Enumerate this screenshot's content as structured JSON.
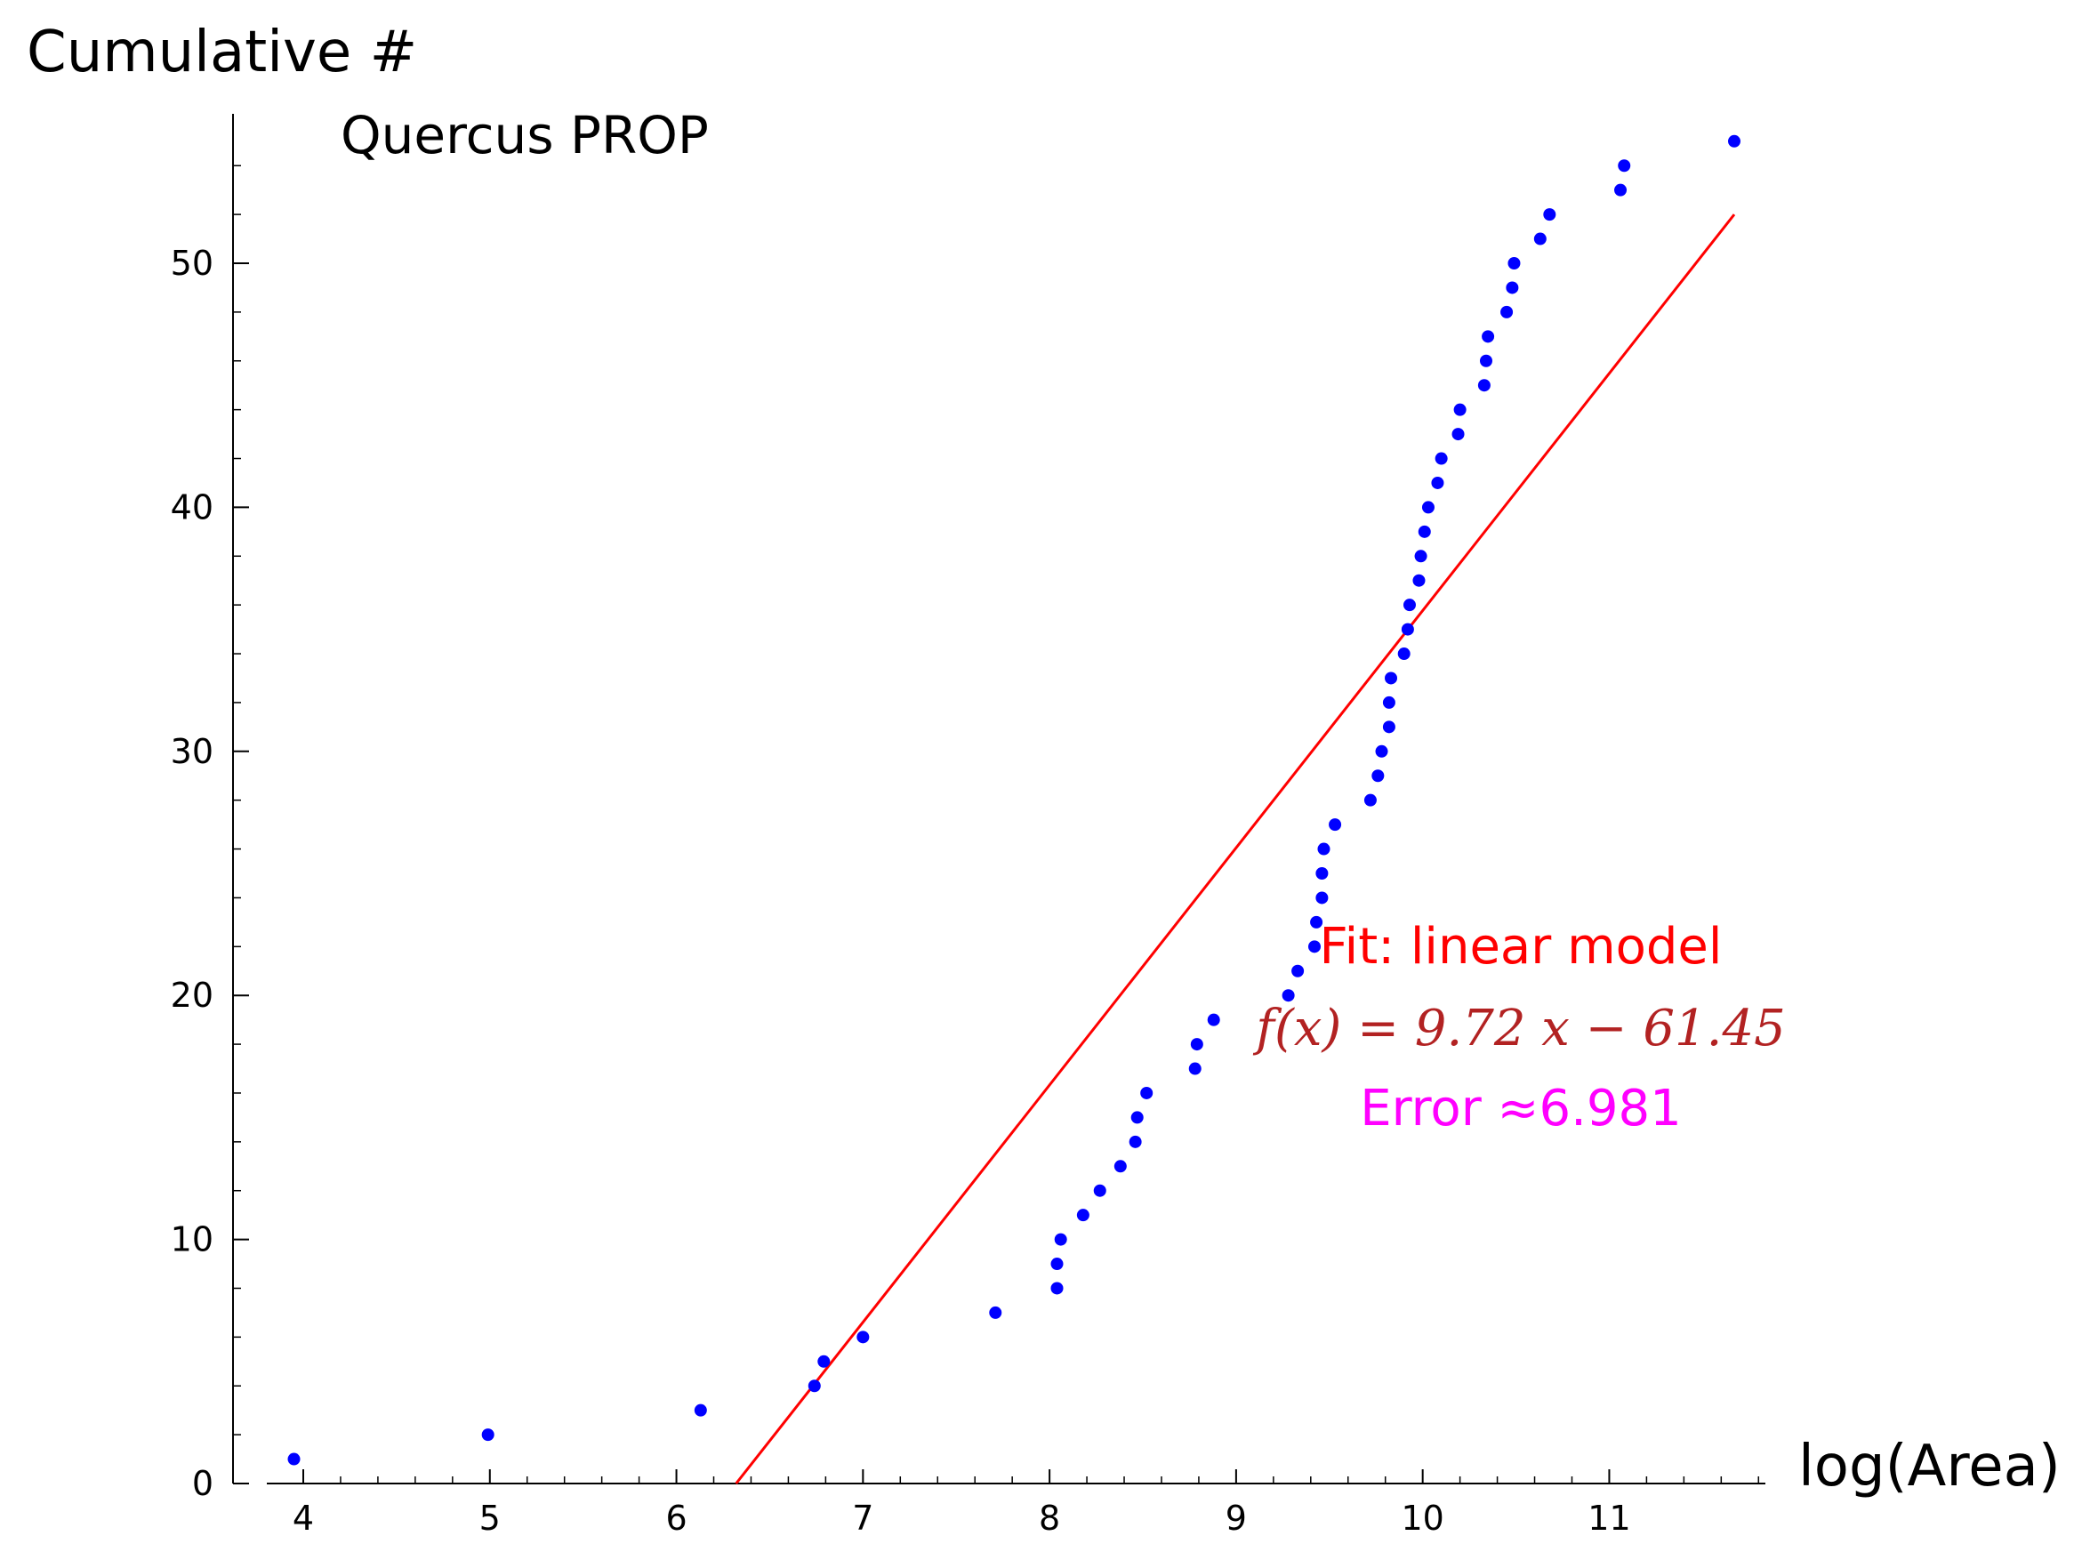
{
  "chart_data": {
    "type": "scatter",
    "title": "Quercus PROP",
    "xlabel": "log(Area)",
    "ylabel": "Cumulative #",
    "xlim": [
      3.8,
      11.85
    ],
    "ylim": [
      0,
      56
    ],
    "x_ticks": [
      4,
      5,
      6,
      7,
      8,
      9,
      10,
      11
    ],
    "y_ticks": [
      0,
      10,
      20,
      30,
      40,
      50
    ],
    "grid": false,
    "colors": {
      "points": "#0000ff",
      "fit_line": "#ff0000",
      "equation": "#b22222",
      "error": "#ff00ff"
    },
    "series": [
      {
        "points": [
          [
            3.95,
            1
          ],
          [
            4.99,
            2
          ],
          [
            6.13,
            3
          ],
          [
            6.74,
            4
          ],
          [
            6.79,
            5
          ],
          [
            7.0,
            6
          ],
          [
            7.71,
            7
          ],
          [
            8.04,
            8
          ],
          [
            8.04,
            9
          ],
          [
            8.06,
            10
          ],
          [
            8.18,
            11
          ],
          [
            8.27,
            12
          ],
          [
            8.38,
            13
          ],
          [
            8.46,
            14
          ],
          [
            8.47,
            15
          ],
          [
            8.52,
            16
          ],
          [
            8.78,
            17
          ],
          [
            8.79,
            18
          ],
          [
            8.88,
            19
          ],
          [
            9.28,
            20
          ],
          [
            9.33,
            21
          ],
          [
            9.42,
            22
          ],
          [
            9.43,
            23
          ],
          [
            9.46,
            24
          ],
          [
            9.46,
            25
          ],
          [
            9.47,
            26
          ],
          [
            9.53,
            27
          ],
          [
            9.72,
            28
          ],
          [
            9.76,
            29
          ],
          [
            9.78,
            30
          ],
          [
            9.82,
            31
          ],
          [
            9.82,
            32
          ],
          [
            9.83,
            33
          ],
          [
            9.9,
            34
          ],
          [
            9.92,
            35
          ],
          [
            9.93,
            36
          ],
          [
            9.98,
            37
          ],
          [
            9.99,
            38
          ],
          [
            10.01,
            39
          ],
          [
            10.03,
            40
          ],
          [
            10.08,
            41
          ],
          [
            10.1,
            42
          ],
          [
            10.19,
            43
          ],
          [
            10.2,
            44
          ],
          [
            10.33,
            45
          ],
          [
            10.34,
            46
          ],
          [
            10.35,
            47
          ],
          [
            10.45,
            48
          ],
          [
            10.48,
            49
          ],
          [
            10.49,
            50
          ],
          [
            10.63,
            51
          ],
          [
            10.68,
            52
          ],
          [
            11.06,
            53
          ],
          [
            11.08,
            54
          ],
          [
            11.67,
            55
          ]
        ]
      },
      {
        "type": "line",
        "x": [
          6.32,
          11.67
        ],
        "y": [
          0,
          52.0
        ]
      }
    ],
    "annotations": {
      "fit_label": "Fit: linear model",
      "equation": "f(x) = 9.72 x − 61.45",
      "error": "Error ≈6.981"
    }
  }
}
